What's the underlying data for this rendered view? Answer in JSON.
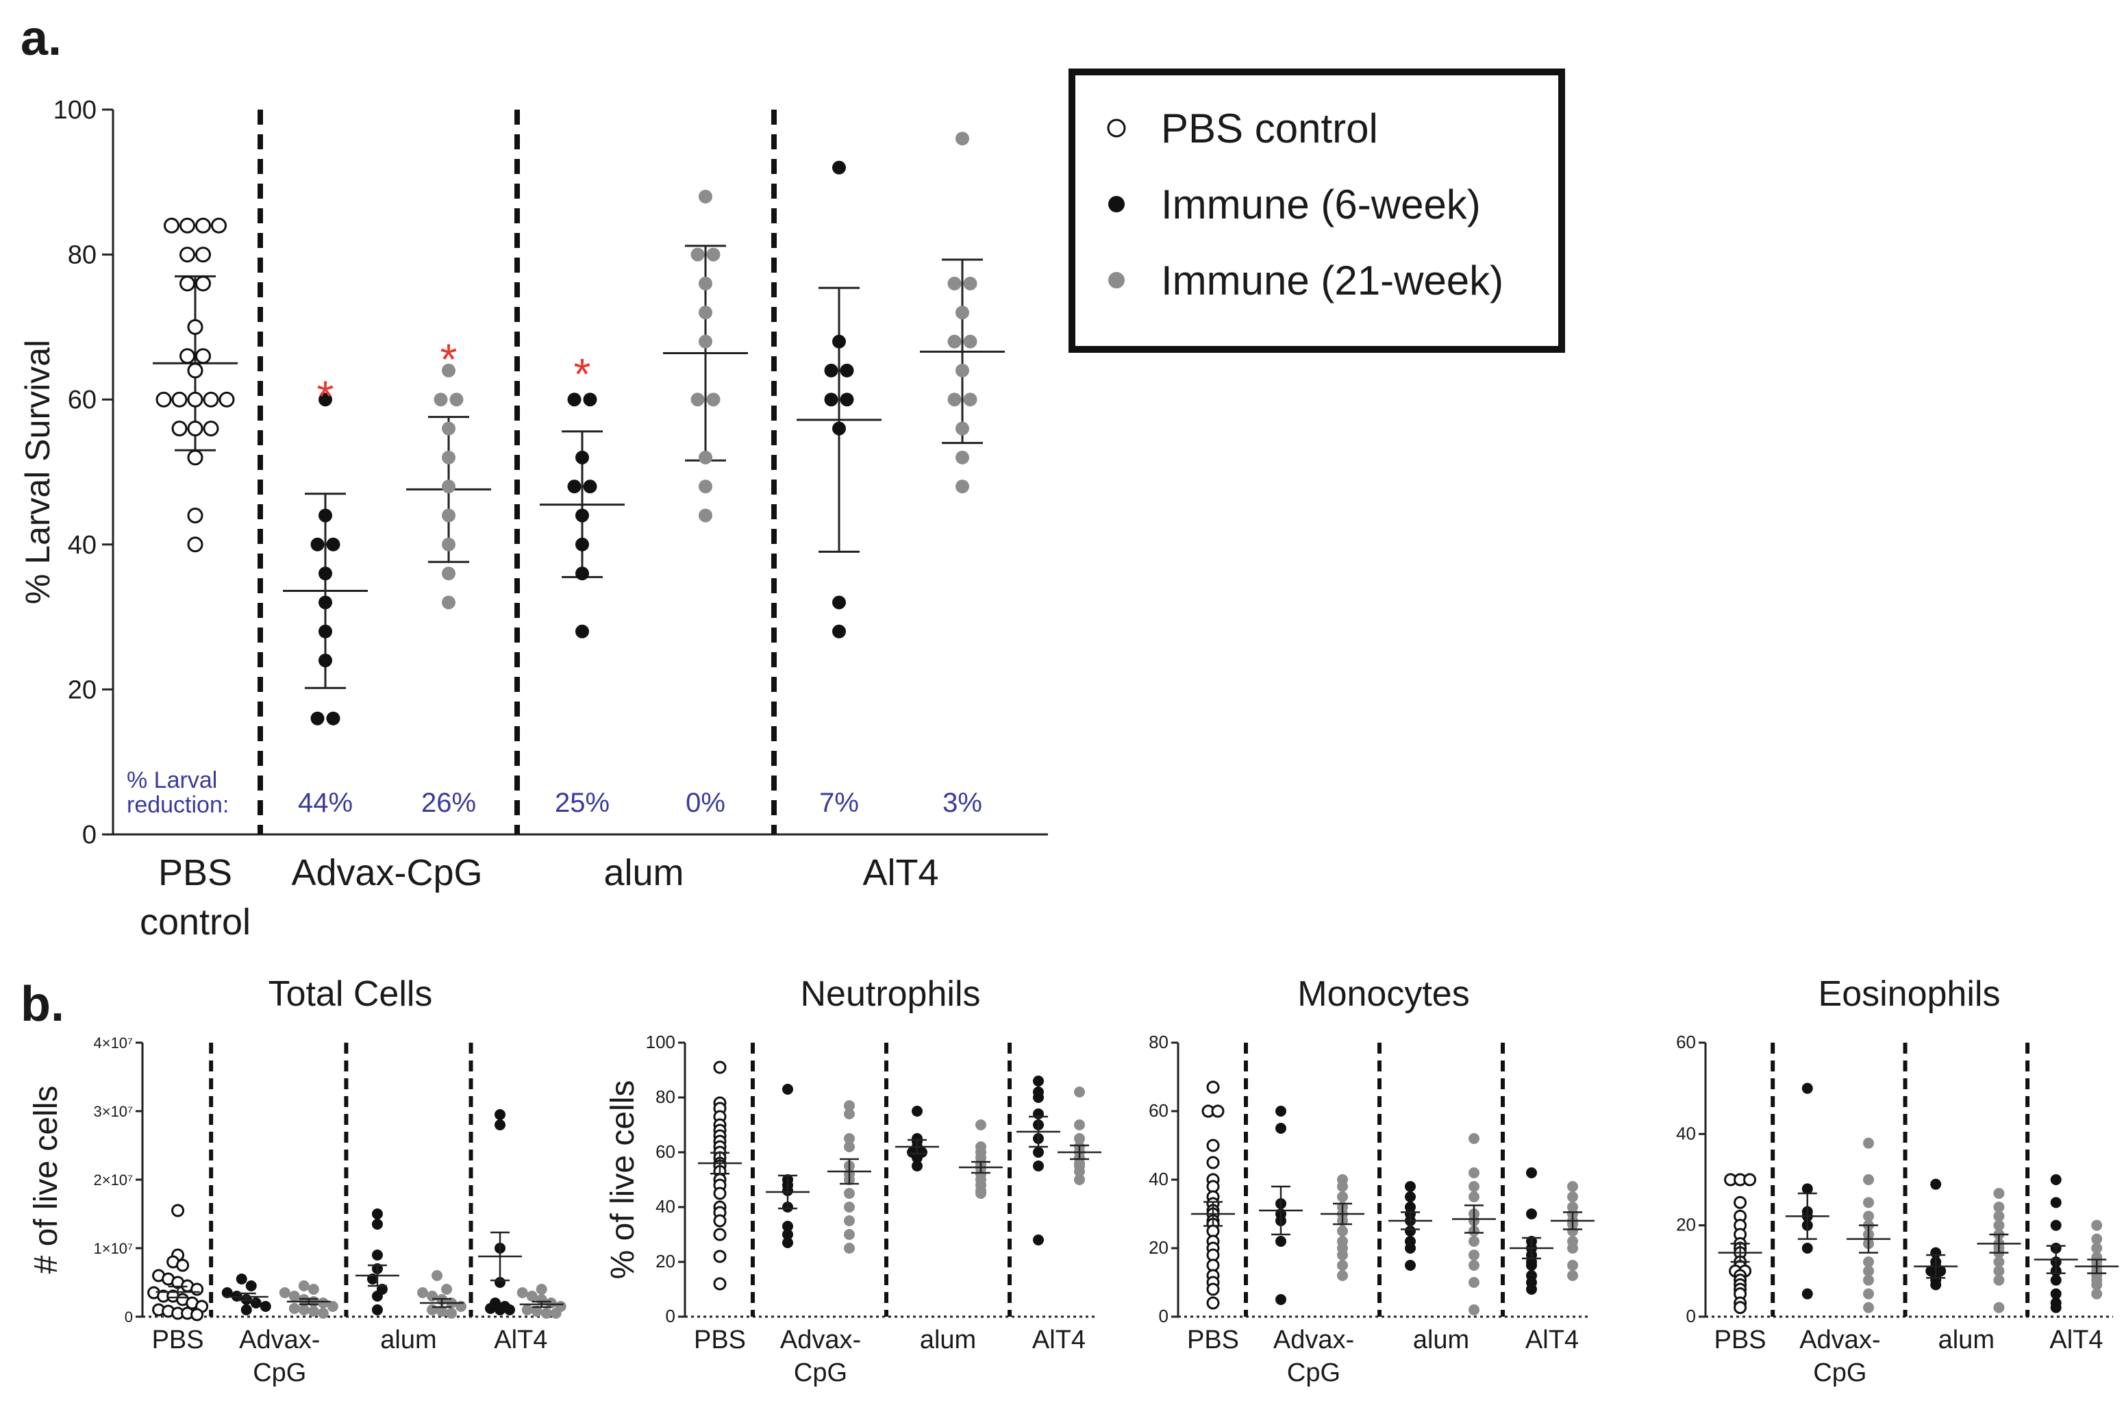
{
  "panel_a_label": "a.",
  "panel_b_label": "b.",
  "colors": {
    "pbs": "#ffffff",
    "week6": "#111111",
    "week21": "#8c8c8c",
    "star": "#e8382e",
    "reduction": "#3a3a9a",
    "outline": "#111111"
  },
  "legend": {
    "items": [
      {
        "label": "PBS control",
        "kind": "pbs"
      },
      {
        "label": "Immune (6-week)",
        "kind": "week6"
      },
      {
        "label": "Immune (21-week)",
        "kind": "week21"
      }
    ]
  },
  "chart_data": [
    {
      "id": "larval-survival",
      "type": "scatter",
      "title": "",
      "ylabel": "% Larval Survival",
      "ylim": [
        0,
        100
      ],
      "yticks": [
        0,
        20,
        40,
        60,
        80,
        100
      ],
      "groups": [
        {
          "label": "PBS\ncontrol",
          "columns": [
            {
              "kind": "pbs",
              "values": [
                84,
                84,
                84,
                84,
                80,
                80,
                76,
                76,
                70,
                66,
                66,
                64,
                60,
                60,
                60,
                60,
                60,
                56,
                56,
                56,
                52,
                44,
                40
              ],
              "mean": 65,
              "sd_low": 53,
              "sd_high": 77
            }
          ]
        },
        {
          "label": "Advax-CpG",
          "columns": [
            {
              "kind": "week6",
              "values": [
                60,
                44,
                40,
                40,
                36,
                32,
                28,
                24,
                16,
                16
              ],
              "mean": 33.6,
              "sd_low": 20.2,
              "sd_high": 47,
              "star": true,
              "reduction": "44%"
            },
            {
              "kind": "week21",
              "values": [
                64,
                60,
                60,
                56,
                52,
                48,
                44,
                40,
                36,
                32
              ],
              "mean": 47.6,
              "sd_low": 37.6,
              "sd_high": 57.6,
              "star": true,
              "reduction": "26%"
            }
          ]
        },
        {
          "label": "alum",
          "columns": [
            {
              "kind": "week6",
              "values": [
                60,
                60,
                52,
                48,
                48,
                44,
                40,
                36,
                28
              ],
              "mean": 45.5,
              "sd_low": 35.5,
              "sd_high": 55.6,
              "star": true,
              "reduction": "25%"
            },
            {
              "kind": "week21",
              "values": [
                88,
                80,
                80,
                76,
                72,
                68,
                60,
                60,
                52,
                48,
                44
              ],
              "mean": 66.4,
              "sd_low": 51.6,
              "sd_high": 81.2,
              "reduction": "0%"
            }
          ]
        },
        {
          "label": "AlT4",
          "columns": [
            {
              "kind": "week6",
              "values": [
                92,
                68,
                64,
                64,
                60,
                60,
                56,
                32,
                28
              ],
              "mean": 57.2,
              "sd_low": 39,
              "sd_high": 75.4,
              "reduction": "7%"
            },
            {
              "kind": "week21",
              "values": [
                96,
                76,
                76,
                72,
                68,
                68,
                64,
                60,
                60,
                56,
                52,
                48
              ],
              "mean": 66.6,
              "sd_low": 54,
              "sd_high": 79.3,
              "reduction": "3%"
            }
          ]
        }
      ],
      "reduction_label": "% Larval\nreduction:"
    },
    {
      "id": "total-cells",
      "type": "scatter",
      "title": "Total Cells",
      "ylabel": "# of live cells",
      "ylim": [
        0,
        4
      ],
      "yticks": [
        0,
        1,
        2,
        3,
        4
      ],
      "ytick_labels": [
        "0",
        "1×10⁷",
        "2×10⁷",
        "3×10⁷",
        "4×10⁷"
      ],
      "xlabels": [
        "PBS",
        "Advax-\nCpG",
        "alum",
        "AlT4"
      ],
      "groups": [
        {
          "columns": [
            {
              "kind": "pbs",
              "values": [
                1.55,
                0.9,
                0.8,
                0.75,
                0.6,
                0.55,
                0.5,
                0.45,
                0.4,
                0.35,
                0.3,
                0.3,
                0.25,
                0.2,
                0.15,
                0.1,
                0.08,
                0.05,
                0.05,
                0.03
              ],
              "mean": 0.36,
              "sem": 0.08
            }
          ]
        },
        {
          "columns": [
            {
              "kind": "week6",
              "values": [
                0.55,
                0.45,
                0.35,
                0.3,
                0.25,
                0.2,
                0.15,
                0.1
              ],
              "mean": 0.29,
              "sem": 0.05
            },
            {
              "kind": "week21",
              "values": [
                0.45,
                0.4,
                0.35,
                0.3,
                0.25,
                0.22,
                0.2,
                0.15,
                0.12,
                0.1,
                0.08,
                0.05
              ],
              "mean": 0.22,
              "sem": 0.04
            }
          ]
        },
        {
          "columns": [
            {
              "kind": "week6",
              "values": [
                1.5,
                1.35,
                0.9,
                0.7,
                0.55,
                0.4,
                0.3,
                0.1
              ],
              "mean": 0.6,
              "sem": 0.15
            },
            {
              "kind": "week21",
              "values": [
                0.6,
                0.4,
                0.35,
                0.3,
                0.25,
                0.2,
                0.15,
                0.1,
                0.08,
                0.05
              ],
              "mean": 0.2,
              "sem": 0.06
            }
          ]
        },
        {
          "columns": [
            {
              "kind": "week6",
              "values": [
                2.95,
                2.8,
                1.0,
                0.5,
                0.2,
                0.15,
                0.12,
                0.1,
                0.1
              ],
              "mean": 0.88,
              "sem": 0.35
            },
            {
              "kind": "week21",
              "values": [
                0.4,
                0.35,
                0.3,
                0.25,
                0.2,
                0.15,
                0.1,
                0.08,
                0.05,
                0.05
              ],
              "mean": 0.18,
              "sem": 0.04
            }
          ]
        }
      ]
    },
    {
      "id": "neutrophils",
      "type": "scatter",
      "title": "Neutrophils",
      "ylabel": "% of live cells",
      "ylim": [
        0,
        100
      ],
      "yticks": [
        0,
        20,
        40,
        60,
        80,
        100
      ],
      "xlabels": [
        "PBS",
        "Advax-\nCpG",
        "alum",
        "AlT4"
      ],
      "groups": [
        {
          "columns": [
            {
              "kind": "pbs",
              "values": [
                91,
                78,
                76,
                73,
                70,
                68,
                66,
                64,
                62,
                60,
                58,
                56,
                55,
                53,
                50,
                48,
                45,
                40,
                38,
                35,
                30,
                22,
                12
              ],
              "mean": 56,
              "sem": 3.8
            }
          ]
        },
        {
          "columns": [
            {
              "kind": "week6",
              "values": [
                83,
                50,
                48,
                46,
                40,
                33,
                30,
                27
              ],
              "mean": 45.5,
              "sem": 6
            },
            {
              "kind": "week21",
              "values": [
                77,
                74,
                65,
                62,
                55,
                52,
                50,
                45,
                40,
                35,
                30,
                25
              ],
              "mean": 53,
              "sem": 4.5
            }
          ]
        },
        {
          "columns": [
            {
              "kind": "week6",
              "values": [
                75,
                65,
                64,
                62,
                60,
                60,
                58,
                55
              ],
              "mean": 62,
              "sem": 2.5
            },
            {
              "kind": "week21",
              "values": [
                70,
                62,
                60,
                58,
                56,
                55,
                54,
                52,
                50,
                48,
                46,
                45
              ],
              "mean": 54.5,
              "sem": 2
            }
          ]
        },
        {
          "columns": [
            {
              "kind": "week6",
              "values": [
                86,
                82,
                80,
                74,
                70,
                65,
                60,
                55,
                28
              ],
              "mean": 67.5,
              "sem": 5.5
            },
            {
              "kind": "week21",
              "values": [
                82,
                70,
                65,
                62,
                60,
                58,
                56,
                55,
                53,
                50
              ],
              "mean": 60,
              "sem": 2.5
            }
          ]
        }
      ]
    },
    {
      "id": "monocytes",
      "type": "scatter",
      "title": "Monocytes",
      "ylabel": "",
      "ylim": [
        0,
        80
      ],
      "yticks": [
        0,
        20,
        40,
        60,
        80
      ],
      "xlabels": [
        "PBS",
        "Advax-\nCpG",
        "alum",
        "AlT4"
      ],
      "groups": [
        {
          "columns": [
            {
              "kind": "pbs",
              "values": [
                67,
                60,
                60,
                50,
                45,
                40,
                38,
                35,
                33,
                31,
                30,
                28,
                27,
                25,
                22,
                20,
                18,
                15,
                12,
                10,
                8,
                4
              ],
              "mean": 30,
              "sem": 3.5
            }
          ]
        },
        {
          "columns": [
            {
              "kind": "week6",
              "values": [
                60,
                55,
                33,
                30,
                28,
                22,
                5
              ],
              "mean": 31,
              "sem": 7
            },
            {
              "kind": "week21",
              "values": [
                40,
                38,
                35,
                32,
                30,
                28,
                25,
                22,
                20,
                18,
                15,
                12
              ],
              "mean": 30,
              "sem": 3
            }
          ]
        },
        {
          "columns": [
            {
              "kind": "week6",
              "values": [
                38,
                35,
                32,
                30,
                28,
                25,
                22,
                20,
                15
              ],
              "mean": 28,
              "sem": 2.5
            },
            {
              "kind": "week21",
              "values": [
                52,
                42,
                38,
                35,
                30,
                28,
                25,
                22,
                18,
                15,
                10,
                2
              ],
              "mean": 28.5,
              "sem": 4
            }
          ]
        },
        {
          "columns": [
            {
              "kind": "week6",
              "values": [
                42,
                30,
                22,
                20,
                18,
                16,
                15,
                12,
                10,
                8
              ],
              "mean": 20,
              "sem": 3
            },
            {
              "kind": "week21",
              "values": [
                38,
                35,
                32,
                30,
                28,
                27,
                25,
                22,
                20,
                15,
                12
              ],
              "mean": 28,
              "sem": 2.5
            }
          ]
        }
      ]
    },
    {
      "id": "eosinophils",
      "type": "scatter",
      "title": "Eosinophils",
      "ylabel": "",
      "ylim": [
        0,
        60
      ],
      "yticks": [
        0,
        20,
        40,
        60
      ],
      "xlabels": [
        "PBS",
        "Advax-\nCpG",
        "alum",
        "AlT4"
      ],
      "groups": [
        {
          "columns": [
            {
              "kind": "pbs",
              "values": [
                30,
                30,
                30,
                25,
                22,
                20,
                18,
                16,
                15,
                14,
                12,
                11,
                10,
                10,
                9,
                8,
                7,
                6,
                5,
                3,
                2
              ],
              "mean": 14,
              "sem": 2
            }
          ]
        },
        {
          "columns": [
            {
              "kind": "week6",
              "values": [
                50,
                28,
                23,
                22,
                20,
                15,
                5
              ],
              "mean": 22,
              "sem": 5
            },
            {
              "kind": "week21",
              "values": [
                38,
                30,
                25,
                22,
                20,
                18,
                16,
                12,
                10,
                8,
                5,
                2
              ],
              "mean": 17,
              "sem": 3
            }
          ]
        },
        {
          "columns": [
            {
              "kind": "week6",
              "values": [
                29,
                14,
                12,
                11,
                10,
                10,
                9,
                8,
                7
              ],
              "mean": 11,
              "sem": 2.5
            },
            {
              "kind": "week21",
              "values": [
                27,
                24,
                22,
                20,
                18,
                16,
                15,
                14,
                12,
                10,
                8,
                2
              ],
              "mean": 16,
              "sem": 2
            }
          ]
        },
        {
          "columns": [
            {
              "kind": "week6",
              "values": [
                30,
                25,
                20,
                15,
                12,
                10,
                8,
                5,
                3,
                2
              ],
              "mean": 12.5,
              "sem": 3
            },
            {
              "kind": "week21",
              "values": [
                20,
                17,
                15,
                13,
                12,
                11,
                10,
                9,
                8,
                7,
                5
              ],
              "mean": 11,
              "sem": 1.5
            }
          ]
        }
      ]
    }
  ]
}
